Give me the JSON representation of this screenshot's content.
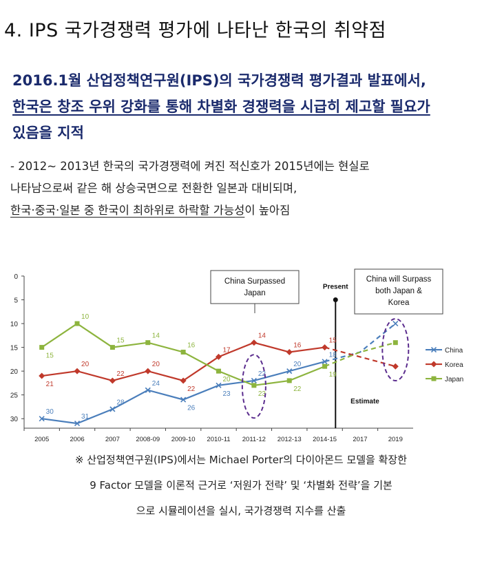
{
  "section_title": "4. IPS 국가경쟁력 평가에 나타난 한국의 취약점",
  "headline": {
    "line1": "2016.1월 산업정책연구원(IPS)의 국가경쟁력 평가결과 발표에서,",
    "line2": "한국은 창조 우위 강화를 통해 차별화 경쟁력을 시급히 제고할 필요가",
    "line3": "있음을 지적"
  },
  "bullet": {
    "line1": "- 2012~ 2013년 한국의 국가경쟁력에 켜진 적신호가 2015년에는 현실로",
    "line2": "나타남으로써 같은 해 상승국면으로 전환한 일본과 대비되며,",
    "line3_underlined": "한국·중국·일본 중 한국이 최하위로 하락할 가능성",
    "line3_rest": "이 높아짐"
  },
  "chart_data": {
    "type": "line",
    "categories": [
      "2005",
      "2006",
      "2007",
      "2008-09",
      "2009-10",
      "2010-11",
      "2011-12",
      "2012-13",
      "2014-15",
      "2017",
      "2019"
    ],
    "ylim": [
      0,
      32
    ],
    "y_inverted": true,
    "yticks": [
      0,
      5,
      10,
      15,
      20,
      25,
      30
    ],
    "grid": false,
    "legend_position": "right",
    "series": [
      {
        "name": "China",
        "color": "#4a7ebb",
        "marker": "x",
        "values": [
          30,
          31,
          28,
          24,
          26,
          23,
          22,
          20,
          18,
          null,
          null
        ],
        "estimate": [
          18,
          16,
          10
        ]
      },
      {
        "name": "Korea",
        "color": "#c0392b",
        "marker": "diamond",
        "values": [
          21,
          20,
          22,
          20,
          22,
          17,
          14,
          16,
          15,
          null,
          null
        ],
        "estimate": [
          15,
          17,
          19
        ]
      },
      {
        "name": "Japan",
        "color": "#8db43e",
        "marker": "square",
        "values": [
          15,
          10,
          15,
          14,
          16,
          20,
          23,
          22,
          19,
          null,
          null
        ],
        "estimate": [
          19,
          16,
          14
        ]
      }
    ],
    "annotations": {
      "china_surpassed": "China Surpassed Japan",
      "present": "Present",
      "china_will_surpass": "China will Surpass both Japan & Korea",
      "estimate": "Estimate"
    }
  },
  "notes": {
    "line1": "※ 산업정책연구원(IPS)에서는 Michael Porter의 다이아몬드 모델을 확장한",
    "line2": "9 Factor 모델을 이론적 근거로 ‘저원가 전략’ 및 ‘차별화 전략’을 기본",
    "line3": "으로 시뮬레이션을 실시, 국가경쟁력 지수를 산출"
  }
}
